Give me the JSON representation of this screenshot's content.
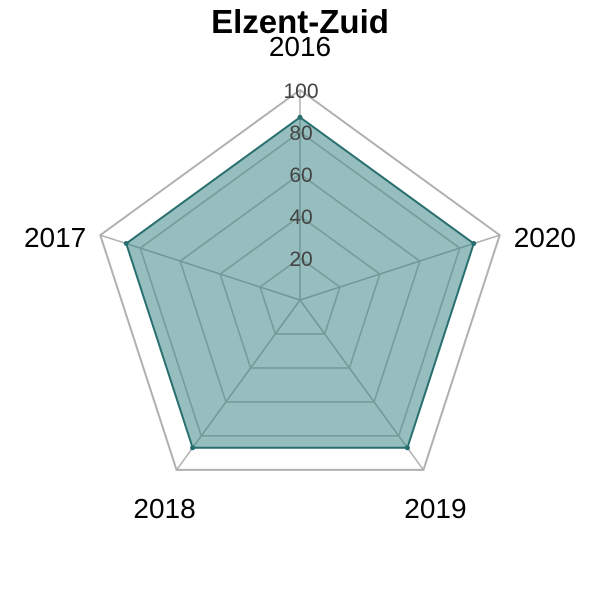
{
  "chart_data": {
    "type": "radar",
    "title": "Elzent-Zuid",
    "categories": [
      "2016",
      "2017",
      "2018",
      "2019",
      "2020"
    ],
    "series": [
      {
        "name": "Elzent-Zuid",
        "values": [
          87,
          87,
          87,
          87,
          87
        ]
      }
    ],
    "rlim": [
      0,
      100
    ],
    "rticks": [
      20,
      40,
      60,
      80,
      100
    ],
    "tick_labels": [
      "20",
      "40",
      "60",
      "80",
      "100"
    ],
    "colors": {
      "fill": "#2e7d7d",
      "fill_opacity": 0.5,
      "line": "#2a6f6f",
      "grid_inner": "#7a9e9e",
      "grid_outer": "#b0b0b0"
    }
  }
}
